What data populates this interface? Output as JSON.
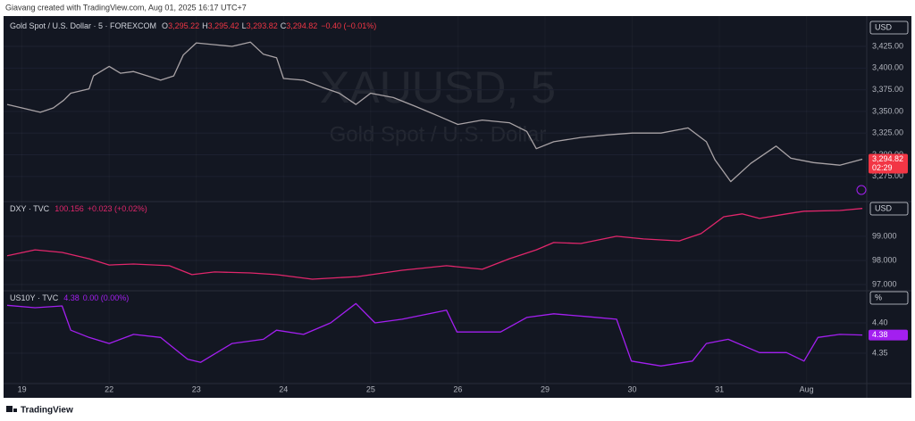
{
  "header": "Giavang created with TradingView.com, Aug 01, 2025 16:17 UTC+7",
  "footer": "TradingView",
  "chart_data": [
    {
      "type": "line",
      "title": "Gold Spot / U.S. Dollar · 5 · FOREXCOM",
      "ohlc": [
        {
          "key": "O",
          "value": "3,295.22"
        },
        {
          "key": "H",
          "value": "3,295.42"
        },
        {
          "key": "L",
          "value": "3,293.82"
        },
        {
          "key": "C",
          "value": "3,294.82"
        }
      ],
      "change": "−0.40 (−0.01%)",
      "watermark": [
        "XAUUSD, 5",
        "Gold Spot / U.S. Dollar"
      ],
      "unit": "USD",
      "last_label": {
        "value": 3294.82,
        "label": "3,294.82"
      },
      "countdown": "02:29",
      "label_color": "#f23645",
      "xlim": [
        -0.17,
        9.69
      ],
      "ylim": [
        3246,
        3460
      ],
      "grid": true,
      "yticks": [
        {
          "value": 3275,
          "label": "3,275.00"
        },
        {
          "value": 3300,
          "label": "3,300.00"
        },
        {
          "value": 3325,
          "label": "3,325.00"
        },
        {
          "value": 3350,
          "label": "3,350.00"
        },
        {
          "value": 3375,
          "label": "3,375.00"
        },
        {
          "value": 3400,
          "label": "3,400.00"
        },
        {
          "value": 3425,
          "label": "3,425.00"
        }
      ],
      "x": [
        -0.17,
        0,
        0.21,
        0.36,
        0.48,
        0.56,
        0.77,
        0.82,
        1.0,
        1.13,
        1.28,
        1.44,
        1.59,
        1.74,
        1.85,
        2.0,
        2.21,
        2.41,
        2.62,
        2.77,
        2.92,
        3.0,
        3.23,
        3.44,
        3.64,
        3.83,
        4.0,
        4.26,
        4.51,
        4.77,
        5.0,
        5.28,
        5.59,
        5.79,
        5.9,
        6.1,
        6.41,
        6.72,
        7.0,
        7.33,
        7.64,
        7.85,
        7.95,
        8.13,
        8.36,
        8.65,
        8.82,
        9.08,
        9.38,
        9.64
      ],
      "series": [
        {
          "name": "XAUUSD",
          "color": "#a9a3a6",
          "values": [
            3358,
            3354,
            3349,
            3354,
            3363,
            3371,
            3376,
            3391,
            3402,
            3394,
            3396,
            3391,
            3386,
            3391,
            3415,
            3429,
            3427,
            3425,
            3430,
            3416,
            3412,
            3388,
            3386,
            3378,
            3371,
            3358,
            3371,
            3366,
            3356,
            3345,
            3335,
            3340,
            3337,
            3327,
            3307,
            3315,
            3320,
            3323,
            3325,
            3325,
            3331,
            3315,
            3294,
            3269,
            3290,
            3310,
            3296,
            3291,
            3288,
            3294.82
          ]
        }
      ]
    },
    {
      "type": "line",
      "title": "DXY · TVC",
      "legend_value": "100.156",
      "change": "+0.023 (+0.02%)",
      "unit": "USD",
      "xlim": [
        -0.17,
        9.69
      ],
      "ylim": [
        96.74,
        100.44
      ],
      "grid": true,
      "yticks": [
        {
          "value": 97,
          "label": "97.000"
        },
        {
          "value": 98,
          "label": "98.000"
        },
        {
          "value": 99,
          "label": "99.000"
        }
      ],
      "x": [
        -0.17,
        0.15,
        0.46,
        0.77,
        1.0,
        1.28,
        1.69,
        1.95,
        2.21,
        2.62,
        2.92,
        3.33,
        3.85,
        4.36,
        4.87,
        5.28,
        5.59,
        5.9,
        6.1,
        6.41,
        6.82,
        7.13,
        7.54,
        7.79,
        8.05,
        8.26,
        8.46,
        8.77,
        8.97,
        9.38,
        9.64
      ],
      "series": [
        {
          "name": "DXY",
          "color": "#e0266b",
          "values": [
            98.19,
            98.44,
            98.33,
            98.07,
            97.81,
            97.85,
            97.78,
            97.41,
            97.52,
            97.48,
            97.41,
            97.22,
            97.33,
            97.59,
            97.78,
            97.63,
            98.07,
            98.44,
            98.74,
            98.7,
            99.0,
            98.89,
            98.81,
            99.11,
            99.81,
            99.93,
            99.74,
            99.93,
            100.04,
            100.07,
            100.156
          ]
        }
      ]
    },
    {
      "type": "line",
      "title": "US10Y · TVC",
      "legend_value": "4.38",
      "change": "0.00 (0.00%)",
      "unit": "%",
      "last_label": 4.38,
      "label_color": "#a31ff0",
      "xlim": [
        -0.17,
        9.69
      ],
      "ylim": [
        4.3,
        4.453
      ],
      "grid": true,
      "yticks": [
        4.35,
        {
          "value": 4.4,
          "label": "4.40"
        }
      ],
      "xticks": [
        {
          "value": 0,
          "label": "19"
        },
        {
          "value": 1,
          "label": "22"
        },
        {
          "value": 2,
          "label": "23"
        },
        {
          "value": 3,
          "label": "24"
        },
        {
          "value": 4,
          "label": "25"
        },
        {
          "value": 5,
          "label": "26"
        },
        {
          "value": 6,
          "label": "29"
        },
        {
          "value": 7,
          "label": "30"
        },
        {
          "value": 8,
          "label": "31"
        },
        {
          "value": 9,
          "label": "Aug"
        }
      ],
      "x": [
        -0.17,
        0.15,
        0.46,
        0.56,
        0.77,
        1.0,
        1.28,
        1.59,
        1.9,
        2.05,
        2.41,
        2.77,
        2.92,
        3.23,
        3.54,
        3.83,
        4.05,
        4.36,
        4.67,
        4.87,
        4.99,
        5.49,
        5.79,
        6.1,
        6.51,
        6.82,
        6.99,
        7.33,
        7.69,
        7.85,
        8.1,
        8.46,
        8.77,
        8.97,
        9.13,
        9.38,
        9.64
      ],
      "series": [
        {
          "name": "US10Y",
          "color": "#a31ff0",
          "values": [
            4.429,
            4.425,
            4.428,
            4.388,
            4.376,
            4.366,
            4.381,
            4.376,
            4.34,
            4.335,
            4.366,
            4.373,
            4.388,
            4.381,
            4.4,
            4.432,
            4.4,
            4.406,
            4.415,
            4.421,
            4.385,
            4.385,
            4.409,
            4.415,
            4.41,
            4.406,
            4.337,
            4.329,
            4.337,
            4.366,
            4.373,
            4.351,
            4.351,
            4.337,
            4.376,
            4.381,
            4.38
          ]
        }
      ]
    }
  ]
}
